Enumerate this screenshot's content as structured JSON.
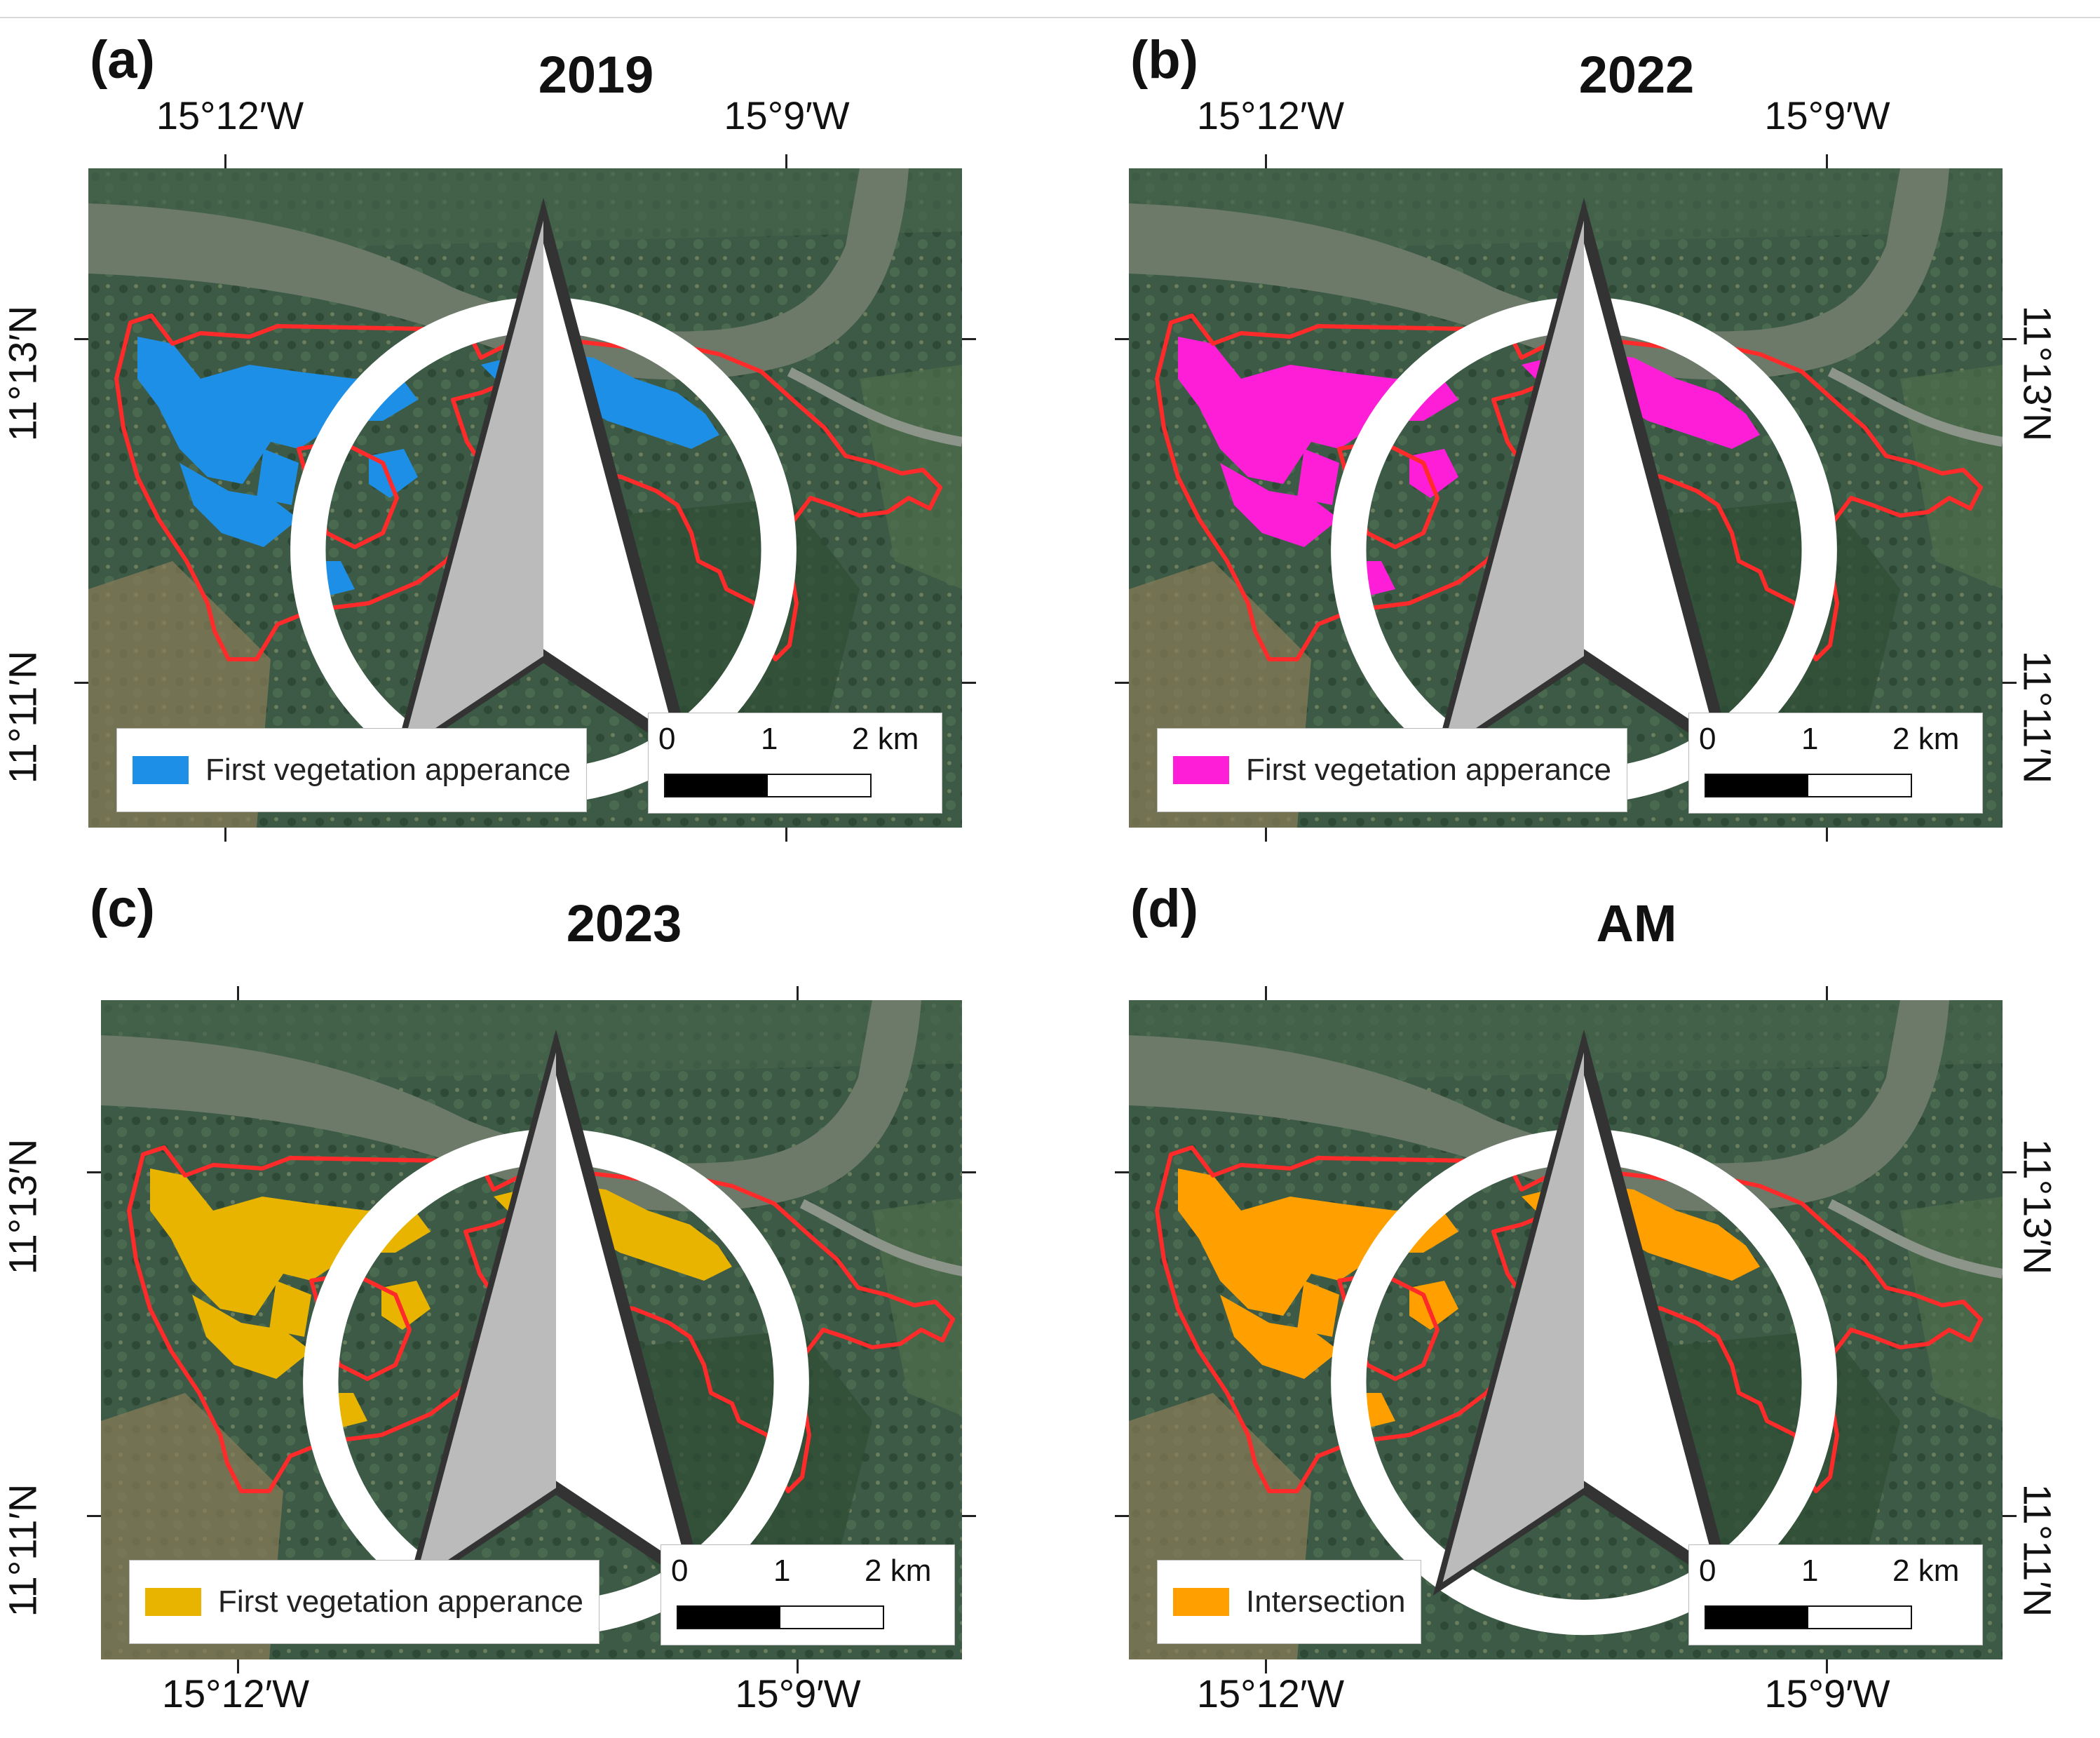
{
  "figure": {
    "panels": [
      {
        "label": "(a)",
        "title": "2019",
        "lon_top": [
          "15°12′W",
          "15°9′W"
        ],
        "lon_bottom": [
          "",
          ""
        ],
        "lat_left": [
          "11°13′N",
          "11°11′N"
        ],
        "lat_right": [
          "11°13′N",
          "11°11′N"
        ],
        "legend_label": "First vegetation apperance",
        "legend_color": "#1e8fe6",
        "scale_labels": [
          "0",
          "1",
          "2 km"
        ]
      },
      {
        "label": "(b)",
        "title": "2022",
        "lon_top": [
          "15°12′W",
          "15°9′W"
        ],
        "lon_bottom": [
          "",
          ""
        ],
        "lat_left": [
          "",
          ""
        ],
        "lat_right": [
          "11°13′N",
          "11°11′N"
        ],
        "legend_label": "First vegetation apperance",
        "legend_color": "#ff1ed8",
        "scale_labels": [
          "0",
          "1",
          "2 km"
        ]
      },
      {
        "label": "(c)",
        "title": "2023",
        "lon_top": [
          "",
          ""
        ],
        "lon_bottom": [
          "15°12′W",
          "15°9′W"
        ],
        "lat_left": [
          "11°13′N",
          "11°11′N"
        ],
        "lat_right": [
          "",
          ""
        ],
        "legend_label": "First vegetation apperance",
        "legend_color": "#e8b400",
        "scale_labels": [
          "0",
          "1",
          "2 km"
        ]
      },
      {
        "label": "(d)",
        "title": "AM",
        "lon_top": [
          "",
          ""
        ],
        "lon_bottom": [
          "15°12′W",
          "15°9′W"
        ],
        "lat_left": [
          "",
          ""
        ],
        "lat_right": [
          "11°13′N",
          "11°11′N"
        ],
        "legend_label": "Intersection",
        "legend_color": "#ffa000",
        "scale_labels": [
          "0",
          "1",
          "2 km"
        ]
      }
    ],
    "boundary_color": "#ff2a2a",
    "north_arrow_icon": "north-arrow-icon"
  }
}
